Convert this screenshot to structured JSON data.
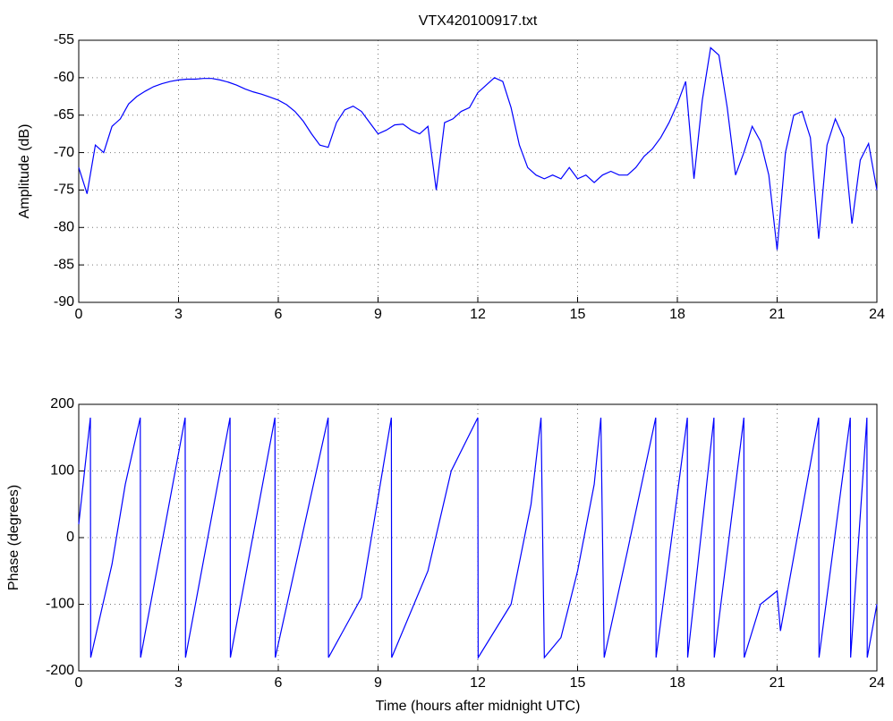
{
  "chart_data": [
    {
      "type": "line",
      "title": "VTX420100917.txt",
      "ylabel": "Amplitude (dB)",
      "xlim": [
        0,
        24
      ],
      "xticks": [
        0,
        3,
        6,
        9,
        12,
        15,
        18,
        21,
        24
      ],
      "ylim": [
        -90,
        -55
      ],
      "yticks": [
        -90,
        -85,
        -80,
        -75,
        -70,
        -65,
        -60,
        -55
      ],
      "grid": true,
      "x": [
        0,
        0.25,
        0.5,
        0.75,
        1.0,
        1.25,
        1.5,
        1.75,
        2.0,
        2.25,
        2.5,
        2.75,
        3.0,
        3.25,
        3.5,
        3.75,
        4.0,
        4.25,
        4.5,
        4.75,
        5.0,
        5.25,
        5.5,
        5.75,
        6.0,
        6.25,
        6.5,
        6.75,
        7.0,
        7.25,
        7.5,
        7.75,
        8.0,
        8.25,
        8.5,
        8.75,
        9.0,
        9.25,
        9.5,
        9.75,
        10.0,
        10.25,
        10.5,
        10.75,
        11.0,
        11.25,
        11.5,
        11.75,
        12.0,
        12.25,
        12.5,
        12.75,
        13.0,
        13.25,
        13.5,
        13.75,
        14.0,
        14.25,
        14.5,
        14.75,
        15.0,
        15.25,
        15.5,
        15.75,
        16.0,
        16.25,
        16.5,
        16.75,
        17.0,
        17.25,
        17.5,
        17.75,
        18.0,
        18.25,
        18.5,
        18.75,
        19.0,
        19.25,
        19.5,
        19.75,
        20.0,
        20.25,
        20.5,
        20.75,
        21.0,
        21.25,
        21.5,
        21.75,
        22.0,
        22.25,
        22.5,
        22.75,
        23.0,
        23.25,
        23.5,
        23.75,
        24.0
      ],
      "series": [
        {
          "color": "#0000ff",
          "values": [
            -72,
            -75.5,
            -69,
            -70,
            -66.5,
            -65.5,
            -63.5,
            -62.5,
            -61.8,
            -61.2,
            -60.8,
            -60.5,
            -60.3,
            -60.2,
            -60.2,
            -60.1,
            -60.1,
            -60.3,
            -60.6,
            -61,
            -61.5,
            -61.9,
            -62.2,
            -62.6,
            -63,
            -63.6,
            -64.5,
            -65.8,
            -67.5,
            -69,
            -69.3,
            -66,
            -64.3,
            -63.8,
            -64.5,
            -66,
            -67.5,
            -67,
            -66.3,
            -66.2,
            -67,
            -67.5,
            -66.5,
            -75,
            -66,
            -65.5,
            -64.5,
            -64,
            -62,
            -61,
            -60,
            -60.5,
            -64,
            -69,
            -72,
            -73,
            -73.5,
            -73,
            -73.5,
            -72,
            -73.5,
            -73,
            -74,
            -73,
            -72.5,
            -73,
            -73,
            -72,
            -70.5,
            -69.5,
            -68,
            -66,
            -63.5,
            -60.5,
            -73.5,
            -63,
            -56,
            -57,
            -64,
            -73,
            -70,
            -66.5,
            -68.5,
            -73,
            -83,
            -70,
            -65,
            -64.5,
            -68,
            -81.5,
            -69,
            -65.5,
            -68,
            -79.5,
            -71,
            -68.8,
            -75
          ]
        }
      ]
    },
    {
      "type": "line",
      "xlabel": "Time (hours after midnight UTC)",
      "ylabel": "Phase (degrees)",
      "xlim": [
        0,
        24
      ],
      "xticks": [
        0,
        3,
        6,
        9,
        12,
        15,
        18,
        21,
        24
      ],
      "ylim": [
        -200,
        200
      ],
      "yticks": [
        -200,
        -100,
        0,
        100,
        200
      ],
      "grid": true,
      "x": [
        0,
        0.35,
        0.36,
        1.0,
        1.4,
        1.85,
        1.86,
        3.2,
        3.21,
        4.55,
        4.56,
        5.9,
        5.91,
        7.5,
        7.51,
        8.5,
        9.4,
        9.41,
        10.5,
        11.2,
        12.0,
        12.01,
        13.0,
        13.6,
        13.9,
        14.0,
        14.5,
        15.0,
        15.5,
        15.7,
        15.8,
        16.5,
        17.35,
        17.36,
        18.3,
        18.31,
        19.1,
        19.11,
        20.0,
        20.01,
        20.5,
        21.0,
        21.1,
        22.25,
        22.26,
        23.2,
        23.21,
        23.7,
        23.71,
        24.0
      ],
      "series": [
        {
          "color": "#0000ff",
          "values": [
            20,
            180,
            -180,
            -40,
            80,
            180,
            -180,
            180,
            -180,
            180,
            -180,
            180,
            -180,
            180,
            -180,
            -90,
            180,
            -180,
            -50,
            100,
            180,
            -180,
            -100,
            50,
            180,
            -180,
            -150,
            -50,
            80,
            180,
            -180,
            -20,
            180,
            -180,
            180,
            -180,
            180,
            -180,
            180,
            -180,
            -100,
            -80,
            -140,
            180,
            -180,
            180,
            -180,
            180,
            -180,
            -100
          ]
        }
      ]
    }
  ]
}
